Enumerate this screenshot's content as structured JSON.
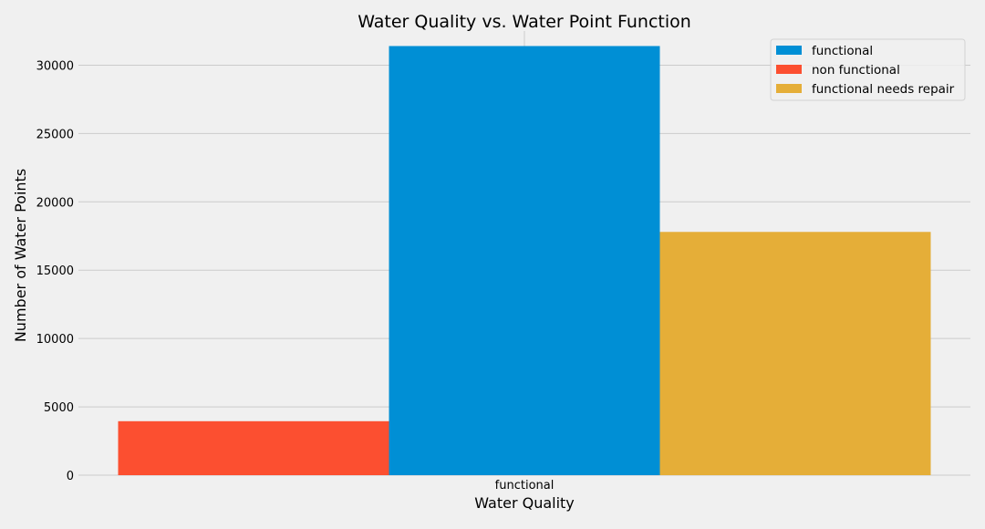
{
  "chart_data": {
    "type": "bar",
    "title": "Water Quality vs. Water Point Function",
    "xlabel": "Water Quality",
    "ylabel": "Number of Water Points",
    "categories": [
      "functional"
    ],
    "series": [
      {
        "name": "functional",
        "color": "#008fd5",
        "values": [
          31400
        ]
      },
      {
        "name": "non functional",
        "color": "#fc4f30",
        "values": [
          3950
        ]
      },
      {
        "name": "functional needs repair",
        "color": "#e5ae38",
        "values": [
          17800
        ]
      }
    ],
    "draw_order": [
      "non functional",
      "functional",
      "functional needs repair"
    ],
    "ylim": [
      0,
      32500
    ],
    "yticks": [
      0,
      5000,
      10000,
      15000,
      20000,
      25000,
      30000
    ],
    "grid": true,
    "legend_position": "top-right"
  }
}
